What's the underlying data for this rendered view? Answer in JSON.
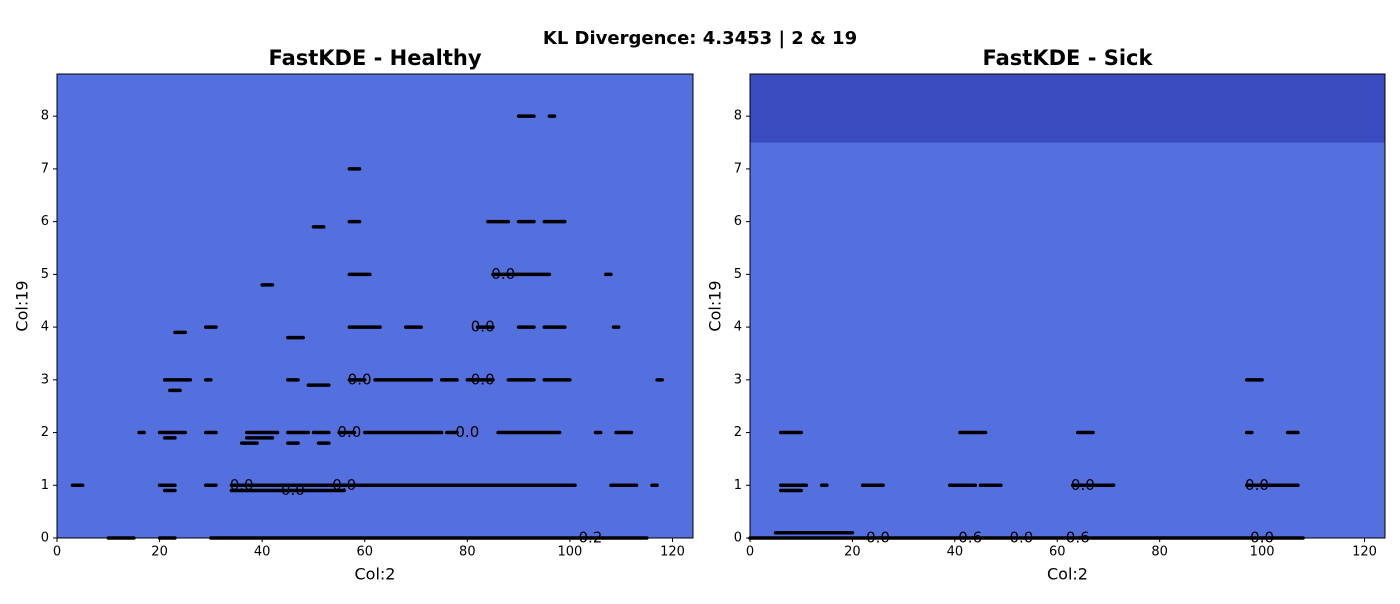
{
  "suptitle": "KL Divergence: 4.3453 | 2 & 19",
  "chart_data": [
    {
      "type": "contour",
      "title": "FastKDE - Healthy",
      "xlabel": "Col:2",
      "ylabel": "Col:19",
      "xlim": [
        0,
        124
      ],
      "ylim": [
        0,
        8.8
      ],
      "xticks": [
        0,
        20,
        40,
        60,
        80,
        100,
        120
      ],
      "yticks": [
        0,
        1,
        2,
        3,
        4,
        5,
        6,
        7,
        8
      ],
      "fill_color": "#5470de",
      "bands": [],
      "line_color": "#000000",
      "segments": [
        {
          "x": [
            90,
            93
          ],
          "y": 8
        },
        {
          "x": [
            96,
            97
          ],
          "y": 8
        },
        {
          "x": [
            57,
            59
          ],
          "y": 7
        },
        {
          "x": [
            57,
            59
          ],
          "y": 6
        },
        {
          "x": [
            84,
            88
          ],
          "y": 6
        },
        {
          "x": [
            90,
            93
          ],
          "y": 6
        },
        {
          "x": [
            95,
            99
          ],
          "y": 6
        },
        {
          "x": [
            50,
            52
          ],
          "y": 5.9
        },
        {
          "x": [
            57,
            61
          ],
          "y": 5
        },
        {
          "x": [
            85,
            96
          ],
          "y": 5
        },
        {
          "x": [
            107,
            108
          ],
          "y": 5
        },
        {
          "x": [
            40,
            42
          ],
          "y": 4.8
        },
        {
          "x": [
            29,
            31
          ],
          "y": 4
        },
        {
          "x": [
            57,
            63
          ],
          "y": 4
        },
        {
          "x": [
            68,
            71
          ],
          "y": 4
        },
        {
          "x": [
            82,
            85
          ],
          "y": 4
        },
        {
          "x": [
            90,
            93
          ],
          "y": 4
        },
        {
          "x": [
            95,
            99
          ],
          "y": 4
        },
        {
          "x": [
            108.5,
            109.5
          ],
          "y": 4
        },
        {
          "x": [
            23,
            25
          ],
          "y": 3.9
        },
        {
          "x": [
            45,
            48
          ],
          "y": 3.8
        },
        {
          "x": [
            21,
            26
          ],
          "y": 3
        },
        {
          "x": [
            29,
            30
          ],
          "y": 3
        },
        {
          "x": [
            45,
            47
          ],
          "y": 3
        },
        {
          "x": [
            57,
            60
          ],
          "y": 3
        },
        {
          "x": [
            62,
            73
          ],
          "y": 3
        },
        {
          "x": [
            75,
            78
          ],
          "y": 3
        },
        {
          "x": [
            80,
            85
          ],
          "y": 3
        },
        {
          "x": [
            88,
            93
          ],
          "y": 3
        },
        {
          "x": [
            95,
            100
          ],
          "y": 3
        },
        {
          "x": [
            117,
            118
          ],
          "y": 3
        },
        {
          "x": [
            49,
            53
          ],
          "y": 2.9
        },
        {
          "x": [
            22,
            24
          ],
          "y": 2.8
        },
        {
          "x": [
            16,
            17
          ],
          "y": 2
        },
        {
          "x": [
            20,
            25
          ],
          "y": 2
        },
        {
          "x": [
            29,
            31
          ],
          "y": 2
        },
        {
          "x": [
            37,
            43
          ],
          "y": 2
        },
        {
          "x": [
            45,
            49
          ],
          "y": 2
        },
        {
          "x": [
            50,
            53
          ],
          "y": 2
        },
        {
          "x": [
            55,
            58
          ],
          "y": 2
        },
        {
          "x": [
            60,
            75
          ],
          "y": 2
        },
        {
          "x": [
            76,
            78
          ],
          "y": 2
        },
        {
          "x": [
            86,
            98
          ],
          "y": 2
        },
        {
          "x": [
            105,
            106
          ],
          "y": 2
        },
        {
          "x": [
            109,
            112
          ],
          "y": 2
        },
        {
          "x": [
            21,
            23
          ],
          "y": 1.9
        },
        {
          "x": [
            37,
            42
          ],
          "y": 1.9
        },
        {
          "x": [
            36,
            39
          ],
          "y": 1.8
        },
        {
          "x": [
            45,
            47
          ],
          "y": 1.8
        },
        {
          "x": [
            51,
            53
          ],
          "y": 1.8
        },
        {
          "x": [
            3,
            5
          ],
          "y": 1
        },
        {
          "x": [
            20,
            23
          ],
          "y": 1
        },
        {
          "x": [
            29,
            31
          ],
          "y": 1
        },
        {
          "x": [
            34,
            101
          ],
          "y": 1
        },
        {
          "x": [
            108,
            113
          ],
          "y": 1
        },
        {
          "x": [
            116,
            117
          ],
          "y": 1
        },
        {
          "x": [
            21,
            23
          ],
          "y": 0.9
        },
        {
          "x": [
            34,
            56
          ],
          "y": 0.9
        },
        {
          "x": [
            10,
            15
          ],
          "y": 0
        },
        {
          "x": [
            20,
            23
          ],
          "y": 0
        },
        {
          "x": [
            30,
            115
          ],
          "y": 0
        }
      ],
      "contour_labels": [
        {
          "text": "0.0",
          "x": 87,
          "y": 5
        },
        {
          "x": 83,
          "y": 4,
          "text": "0.0"
        },
        {
          "x": 59,
          "y": 3,
          "text": "0.0"
        },
        {
          "x": 83,
          "y": 3,
          "text": "0.0"
        },
        {
          "x": 57,
          "y": 2,
          "text": "0.0"
        },
        {
          "x": 80,
          "y": 2,
          "text": "0.0"
        },
        {
          "x": 36,
          "y": 1,
          "text": "0.0"
        },
        {
          "x": 46,
          "y": 0.9,
          "text": "0.0"
        },
        {
          "x": 56,
          "y": 1,
          "text": "0.0"
        },
        {
          "x": 104,
          "y": 0,
          "text": "0.2"
        }
      ]
    },
    {
      "type": "contour",
      "title": "FastKDE - Sick",
      "xlabel": "Col:2",
      "ylabel": "Col:19",
      "xlim": [
        0,
        124
      ],
      "ylim": [
        0,
        8.8
      ],
      "xticks": [
        0,
        20,
        40,
        60,
        80,
        100,
        120
      ],
      "yticks": [
        0,
        1,
        2,
        3,
        4,
        5,
        6,
        7,
        8
      ],
      "fill_color": "#5470de",
      "bands": [
        {
          "from": 7.5,
          "to": 8.8,
          "color": "#3b4cc0"
        }
      ],
      "line_color": "#000000",
      "segments": [
        {
          "x": [
            97,
            100
          ],
          "y": 3
        },
        {
          "x": [
            6,
            10
          ],
          "y": 2
        },
        {
          "x": [
            41,
            46
          ],
          "y": 2
        },
        {
          "x": [
            64,
            67
          ],
          "y": 2
        },
        {
          "x": [
            97,
            98
          ],
          "y": 2
        },
        {
          "x": [
            105,
            107
          ],
          "y": 2
        },
        {
          "x": [
            6,
            11
          ],
          "y": 1
        },
        {
          "x": [
            14,
            15
          ],
          "y": 1
        },
        {
          "x": [
            22,
            26
          ],
          "y": 1
        },
        {
          "x": [
            39,
            44
          ],
          "y": 1
        },
        {
          "x": [
            45,
            49
          ],
          "y": 1
        },
        {
          "x": [
            63,
            71
          ],
          "y": 1
        },
        {
          "x": [
            97,
            107
          ],
          "y": 1
        },
        {
          "x": [
            6,
            10
          ],
          "y": 0.9
        },
        {
          "x": [
            5,
            20
          ],
          "y": 0.1
        },
        {
          "x": [
            0,
            108
          ],
          "y": 0
        }
      ],
      "contour_labels": [
        {
          "text": "0.0",
          "x": 65,
          "y": 1
        },
        {
          "x": 99,
          "y": 1,
          "text": "0.0"
        },
        {
          "x": 25,
          "y": 0,
          "text": "0.0"
        },
        {
          "x": 43,
          "y": 0,
          "text": "0.6"
        },
        {
          "x": 53,
          "y": 0,
          "text": "0.0"
        },
        {
          "x": 64,
          "y": 0,
          "text": "0.6"
        },
        {
          "x": 100,
          "y": 0,
          "text": "0.0"
        }
      ]
    }
  ]
}
